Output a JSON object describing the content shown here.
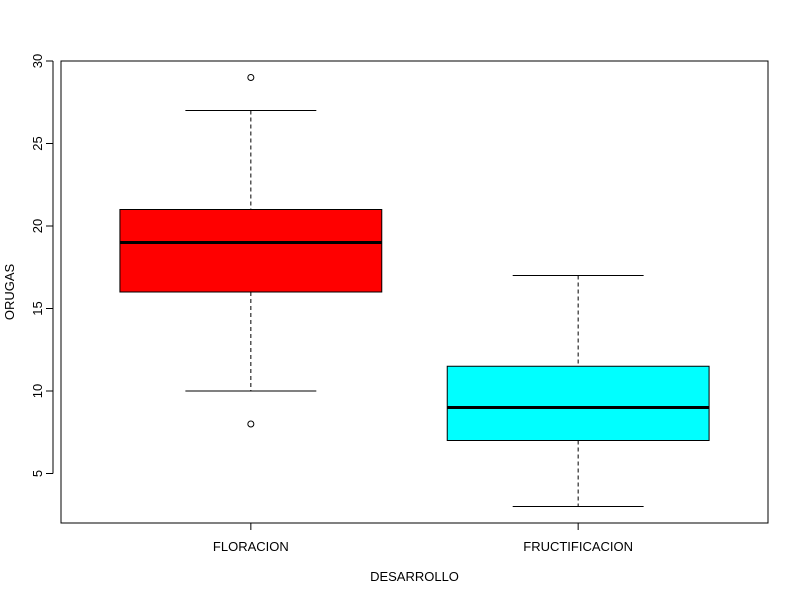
{
  "chart_data": {
    "type": "box",
    "title": "",
    "xlabel": "DESARROLLO",
    "ylabel": "ORUGAS",
    "ylim": [
      2,
      30
    ],
    "yticks": [
      5,
      10,
      15,
      20,
      25,
      30
    ],
    "grid": false,
    "categories": [
      "FLORACION",
      "FRUCTIFICACION"
    ],
    "boxes": [
      {
        "name": "FLORACION",
        "whisker_low": 10,
        "q1": 16,
        "median": 19,
        "q3": 21,
        "whisker_high": 27,
        "outliers": [
          29,
          8
        ],
        "color": "#ff0000"
      },
      {
        "name": "FRUCTIFICACION",
        "whisker_low": 3,
        "q1": 7,
        "median": 9,
        "q3": 11.5,
        "whisker_high": 17,
        "outliers": [],
        "color": "#00ffff"
      }
    ]
  }
}
